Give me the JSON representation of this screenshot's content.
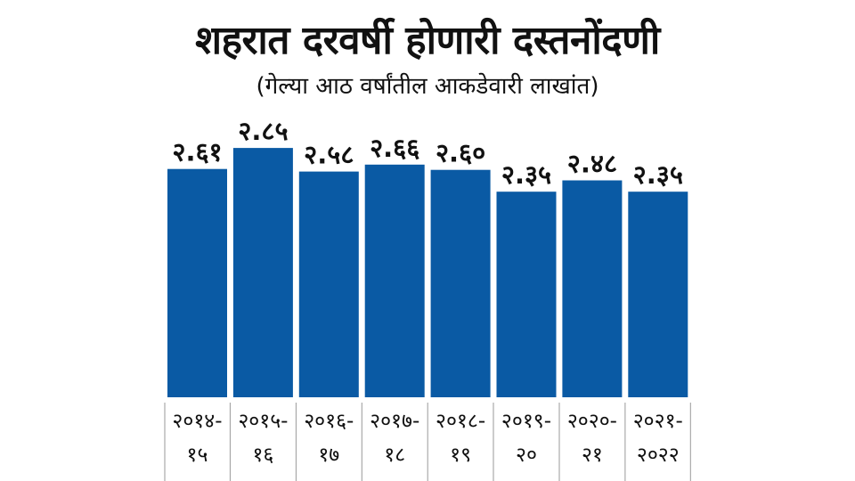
{
  "chart_data": {
    "type": "bar",
    "title": "शहरात दरवर्षी होणारी दस्तनोंदणी",
    "subtitle": "(गेल्या आठ वर्षांतील आकडेवारी लाखांत)",
    "categories": [
      [
        "२०१४-",
        "१५"
      ],
      [
        "२०१५-",
        "१६"
      ],
      [
        "२०१६-",
        "१७"
      ],
      [
        "२०१७-",
        "१८"
      ],
      [
        "२०१८-",
        "१९"
      ],
      [
        "२०१९-",
        "२०"
      ],
      [
        "२०२०-",
        "२१"
      ],
      [
        "२०२१-",
        "२०२२"
      ]
    ],
    "values": [
      2.61,
      2.85,
      2.58,
      2.66,
      2.6,
      2.35,
      2.48,
      2.35
    ],
    "value_labels": [
      "२.६१",
      "२.८५",
      "२.५८",
      "२.६६",
      "२.६०",
      "२.३५",
      "२.४८",
      "२.३५"
    ],
    "xlabel": "",
    "ylabel": "",
    "ylim": [
      0,
      2.85
    ],
    "grid": false,
    "legend": "none",
    "colors": {
      "bar": "#0a5aa4",
      "separator": "#9a9a9a"
    }
  }
}
